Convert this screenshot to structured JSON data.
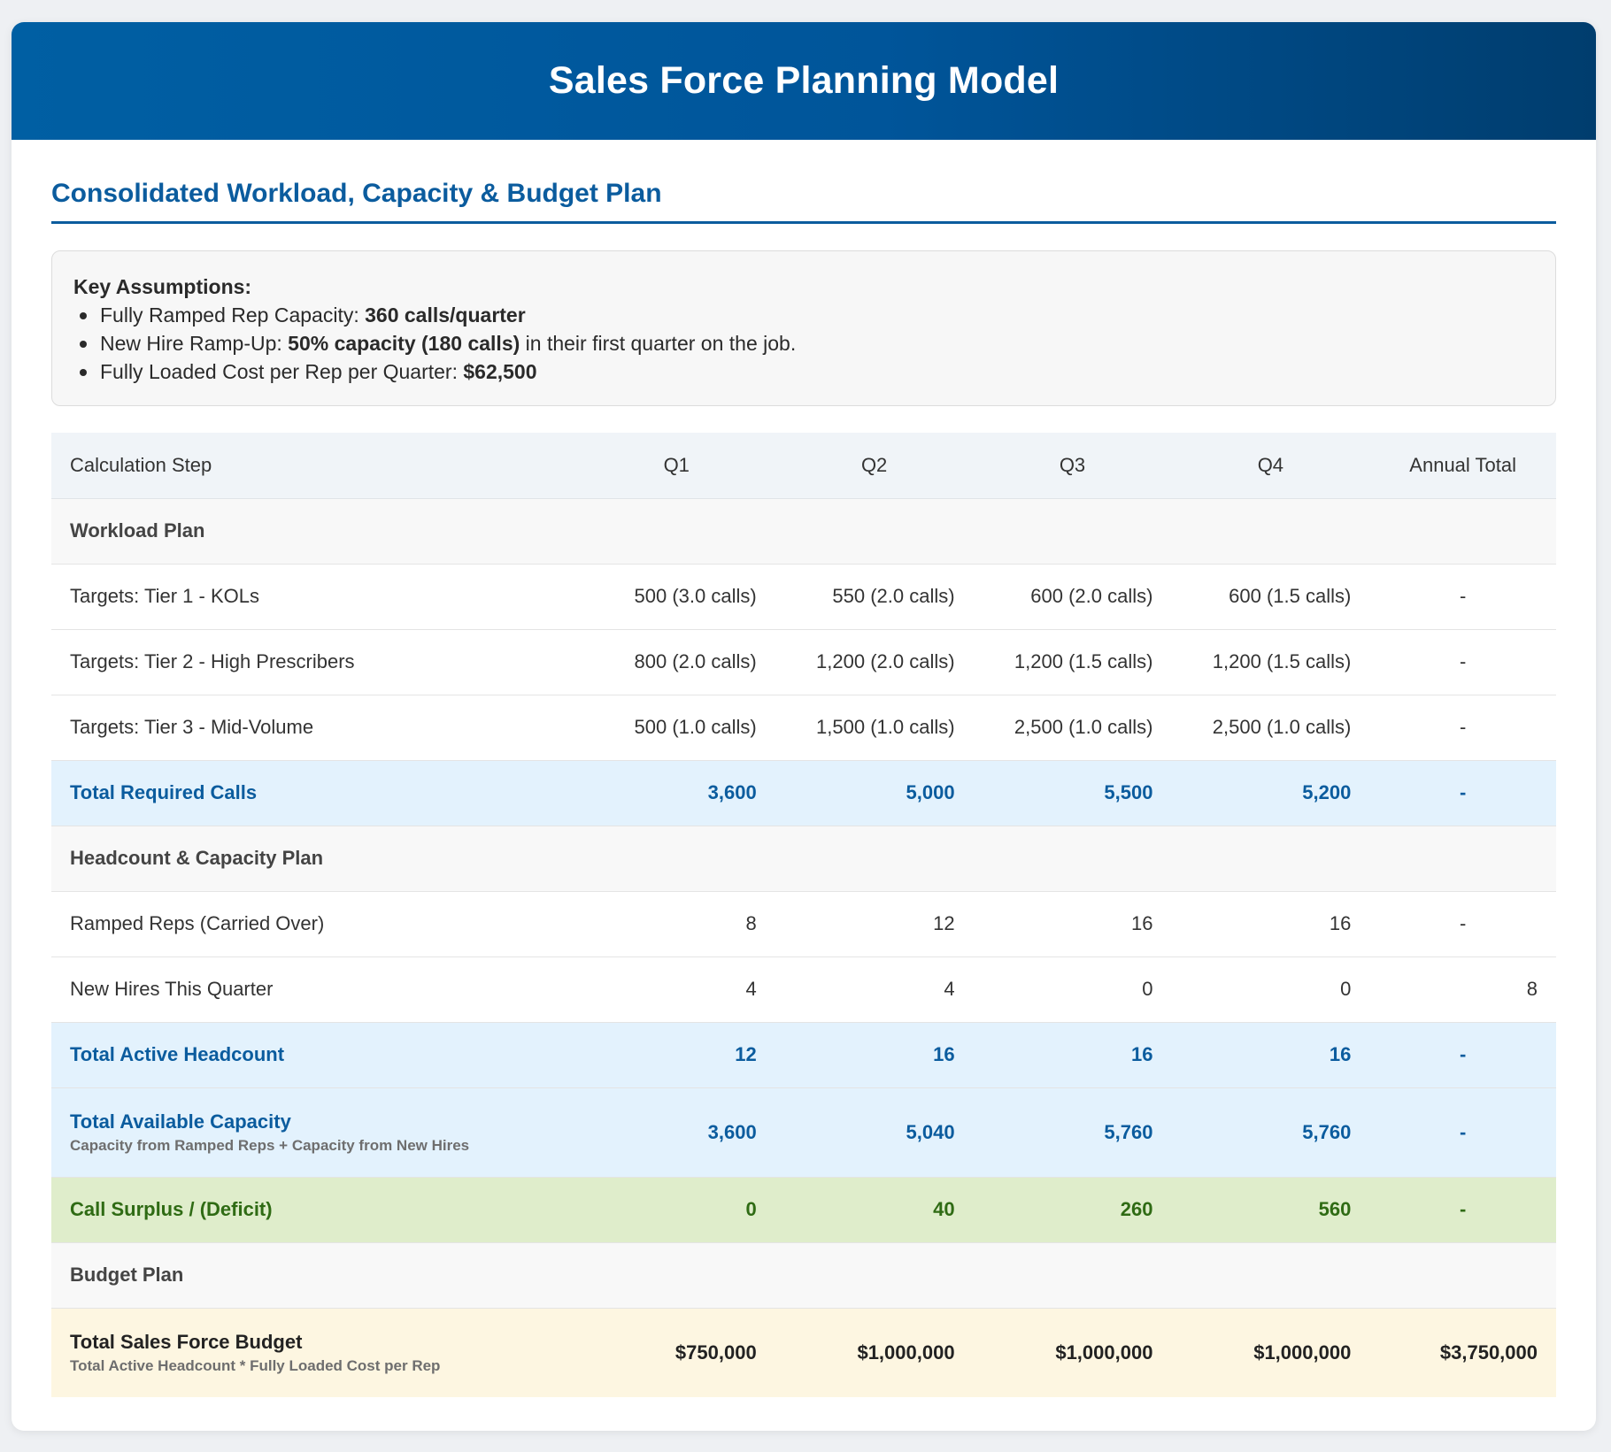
{
  "header": {
    "title": "Sales Force Planning Model"
  },
  "section_title": "Consolidated Workload, Capacity & Budget Plan",
  "assumptions": {
    "title": "Key Assumptions:",
    "items": [
      {
        "prefix": "Fully Ramped Rep Capacity: ",
        "bold": "360 calls/quarter",
        "suffix": ""
      },
      {
        "prefix": "New Hire Ramp-Up: ",
        "bold": "50% capacity (180 calls)",
        "suffix": " in their first quarter on the job."
      },
      {
        "prefix": "Fully Loaded Cost per Rep per Quarter: ",
        "bold": "$62,500",
        "suffix": ""
      }
    ]
  },
  "table": {
    "columns": [
      "Calculation Step",
      "Q1",
      "Q2",
      "Q3",
      "Q4",
      "Annual Total"
    ],
    "workload_header": "Workload Plan",
    "tier1": {
      "label": "Targets: Tier 1 - KOLs",
      "values": [
        "500 (3.0 calls)",
        "550 (2.0 calls)",
        "600 (2.0 calls)",
        "600 (1.5 calls)",
        "-"
      ]
    },
    "tier2": {
      "label": "Targets: Tier 2 - High Prescribers",
      "values": [
        "800 (2.0 calls)",
        "1,200 (2.0 calls)",
        "1,200 (1.5 calls)",
        "1,200 (1.5 calls)",
        "-"
      ]
    },
    "tier3": {
      "label": "Targets: Tier 3 - Mid-Volume",
      "values": [
        "500 (1.0 calls)",
        "1,500 (1.0 calls)",
        "2,500 (1.0 calls)",
        "2,500 (1.0 calls)",
        "-"
      ]
    },
    "total_required": {
      "label": "Total Required Calls",
      "values": [
        "3,600",
        "5,000",
        "5,500",
        "5,200",
        "-"
      ]
    },
    "headcount_header": "Headcount & Capacity Plan",
    "ramped": {
      "label": "Ramped Reps (Carried Over)",
      "values": [
        "8",
        "12",
        "16",
        "16",
        "-"
      ]
    },
    "new_hires": {
      "label": "New Hires This Quarter",
      "values": [
        "4",
        "4",
        "0",
        "0",
        "8"
      ]
    },
    "total_headcount": {
      "label": "Total Active Headcount",
      "values": [
        "12",
        "16",
        "16",
        "16",
        "-"
      ]
    },
    "total_capacity": {
      "label": "Total Available Capacity",
      "note": "Capacity from Ramped Reps + Capacity from New Hires",
      "values": [
        "3,600",
        "5,040",
        "5,760",
        "5,760",
        "-"
      ]
    },
    "surplus": {
      "label": "Call Surplus / (Deficit)",
      "values": [
        "0",
        "40",
        "260",
        "560",
        "-"
      ]
    },
    "budget_header": "Budget Plan",
    "budget": {
      "label": "Total Sales Force Budget",
      "note": "Total Active Headcount * Fully Loaded Cost per Rep",
      "values": [
        "$750,000",
        "$1,000,000",
        "$1,000,000",
        "$1,000,000",
        "$3,750,000"
      ]
    }
  }
}
